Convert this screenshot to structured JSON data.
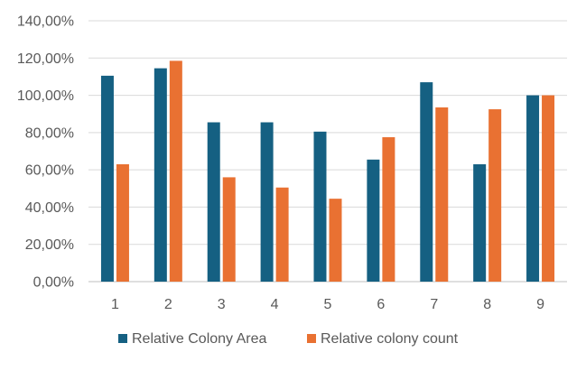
{
  "chart_data": {
    "type": "bar",
    "categories": [
      "1",
      "2",
      "3",
      "4",
      "5",
      "6",
      "7",
      "8",
      "9"
    ],
    "series": [
      {
        "name": "Relative Colony Area",
        "color": "#156082",
        "values": [
          110.5,
          114.5,
          85.5,
          85.5,
          80.5,
          65.5,
          107.0,
          63.0,
          100.0
        ]
      },
      {
        "name": "Relative colony count",
        "color": "#E97132",
        "values": [
          63.0,
          118.5,
          56.0,
          50.5,
          44.5,
          77.5,
          93.5,
          92.5,
          100.0
        ]
      }
    ],
    "ylim": [
      0,
      140
    ],
    "yticks": [
      0,
      20,
      40,
      60,
      80,
      100,
      120,
      140
    ],
    "ytick_labels": [
      "0,00%",
      "20,00%",
      "40,00%",
      "60,00%",
      "80,00%",
      "100,00%",
      "120,00%",
      "140,00%"
    ],
    "title": "",
    "xlabel": "",
    "ylabel": "",
    "grid": true,
    "legend_position": "bottom",
    "gridline_color": "#d9d9d9",
    "axis_color": "#bfbfbf"
  }
}
